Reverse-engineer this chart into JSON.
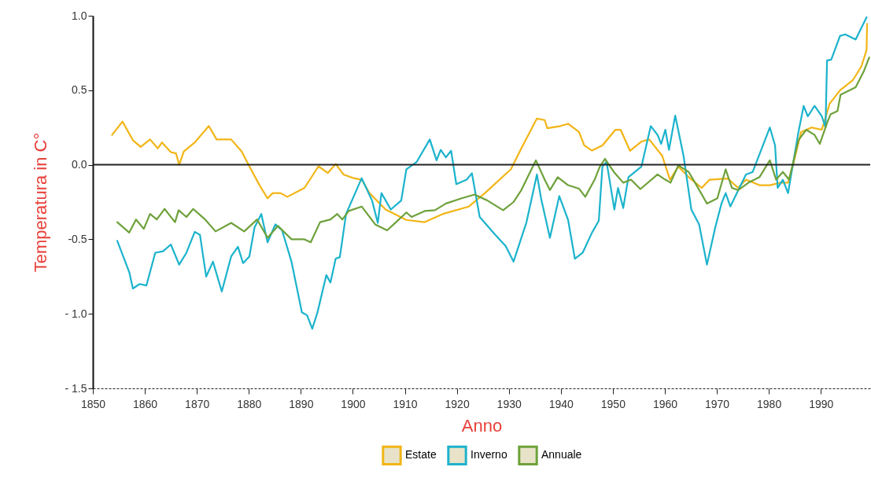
{
  "chart_data": {
    "type": "line",
    "xlabel": "Anno",
    "ylabel": "Temperatura in C°",
    "xlim": [
      1850,
      1999.5
    ],
    "ylim": [
      -1.5,
      1.0
    ],
    "xticks": [
      1850,
      1860,
      1870,
      1880,
      1890,
      1900,
      1910,
      1920,
      1930,
      1940,
      1950,
      1960,
      1970,
      1980,
      1990
    ],
    "yticks": [
      {
        "value": -1.5,
        "label": "- 1.5"
      },
      {
        "value": -1.0,
        "label": "- 1.0"
      },
      {
        "value": -0.5,
        "label": "-0.5"
      },
      {
        "value": 0,
        "label": "0.0"
      },
      {
        "value": 0.5,
        "label": "0.5"
      },
      {
        "value": 1.0,
        "label": "1.0"
      }
    ],
    "grid": false,
    "legend": "bottom",
    "line_style": "solid",
    "ref_lines": [
      {
        "axis": "y",
        "value": 0,
        "color": "#222222"
      }
    ],
    "series": [
      {
        "name": "Estate",
        "color": "#f2b516",
        "x": [
          1853.7,
          1855.7,
          1857.7,
          1859.2,
          1861,
          1862.5,
          1863.3,
          1865,
          1866,
          1866.6,
          1867.5,
          1869.6,
          1872.3,
          1873.8,
          1876.6,
          1878.6,
          1880.1,
          1882.1,
          1883.6,
          1884.6,
          1886.1,
          1887.4,
          1890.7,
          1893.4,
          1895.2,
          1896.7,
          1898.2,
          1900.2,
          1901.7,
          1903.2,
          1906.3,
          1910.3,
          1913.8,
          1917.3,
          1922.3,
          1925.4,
          1930.4,
          1932.4,
          1935.4,
          1936.9,
          1937.4,
          1939.9,
          1941.4,
          1943.5,
          1944.5,
          1946,
          1948,
          1950.5,
          1951.5,
          1953.3,
          1955.5,
          1957,
          1959.5,
          1961,
          1962.6,
          1964.6,
          1967.1,
          1968.6,
          1972.1,
          1974.1,
          1975.6,
          1978.2,
          1980.2,
          1982.2,
          1983.7,
          1984.7,
          1986.2,
          1988.2,
          1990.2,
          1991.7,
          1993.7,
          1996.2,
          1997.8,
          1998.8,
          1998.9
        ],
        "values": [
          0.2,
          0.29,
          0.165,
          0.12,
          0.17,
          0.11,
          0.15,
          0.085,
          0.076,
          0.0,
          0.09,
          0.15,
          0.26,
          0.17,
          0.17,
          0.09,
          -0.01,
          -0.14,
          -0.225,
          -0.19,
          -0.19,
          -0.215,
          -0.155,
          -0.01,
          -0.055,
          0.005,
          -0.065,
          -0.09,
          -0.1,
          -0.19,
          -0.3,
          -0.37,
          -0.385,
          -0.33,
          -0.28,
          -0.19,
          -0.03,
          0.11,
          0.31,
          0.3,
          0.245,
          0.26,
          0.275,
          0.22,
          0.13,
          0.095,
          0.13,
          0.235,
          0.235,
          0.094,
          0.156,
          0.17,
          0.06,
          -0.1,
          -0.012,
          -0.083,
          -0.155,
          -0.1,
          -0.092,
          -0.155,
          -0.1,
          -0.137,
          -0.137,
          -0.12,
          -0.12,
          0.005,
          0.22,
          0.25,
          0.235,
          0.41,
          0.5,
          0.57,
          0.66,
          0.77,
          0.945
        ]
      },
      {
        "name": "Inverno",
        "color": "#1bb3cc",
        "x": [
          1854.7,
          1857,
          1857.7,
          1859,
          1860.3,
          1862,
          1863.5,
          1865,
          1866.6,
          1868,
          1869.6,
          1870.6,
          1871.8,
          1873.1,
          1874.8,
          1876.6,
          1877.9,
          1878.9,
          1880.1,
          1881.1,
          1882.4,
          1883.6,
          1885.1,
          1886.4,
          1888.2,
          1890.2,
          1891.2,
          1892.2,
          1893.2,
          1894.9,
          1895.7,
          1896.7,
          1897.5,
          1898.7,
          1900.2,
          1901.7,
          1903.7,
          1904.8,
          1905.5,
          1907.3,
          1909.3,
          1910.3,
          1912.3,
          1914.8,
          1916.1,
          1916.9,
          1917.9,
          1918.9,
          1919.9,
          1921.9,
          1922.9,
          1924.4,
          1927.4,
          1929.4,
          1930.9,
          1933.4,
          1935.4,
          1936.2,
          1937.9,
          1939.7,
          1941.4,
          1942.7,
          1944.2,
          1946,
          1947.3,
          1948,
          1948.8,
          1950.3,
          1951,
          1952,
          1953,
          1955.5,
          1957.3,
          1958.6,
          1959.3,
          1960.1,
          1960.8,
          1962,
          1963.6,
          1965.1,
          1966.6,
          1968.1,
          1969.7,
          1970.9,
          1971.7,
          1972.6,
          1975.6,
          1976.9,
          1980.2,
          1981.2,
          1981.7,
          1982.7,
          1983.7,
          1985.7,
          1986.7,
          1987.5,
          1988.8,
          1990.2,
          1990.9,
          1991.2,
          1992,
          1993.7,
          1994.7,
          1996.7,
          1998.8
        ],
        "values": [
          -0.51,
          -0.72,
          -0.83,
          -0.8,
          -0.81,
          -0.59,
          -0.58,
          -0.535,
          -0.67,
          -0.59,
          -0.45,
          -0.47,
          -0.75,
          -0.65,
          -0.85,
          -0.615,
          -0.55,
          -0.66,
          -0.615,
          -0.42,
          -0.33,
          -0.52,
          -0.4,
          -0.44,
          -0.65,
          -0.99,
          -1.01,
          -1.1,
          -0.99,
          -0.74,
          -0.79,
          -0.63,
          -0.62,
          -0.33,
          -0.21,
          -0.09,
          -0.24,
          -0.39,
          -0.19,
          -0.3,
          -0.24,
          -0.03,
          0.02,
          0.17,
          0.03,
          0.1,
          0.05,
          0.094,
          -0.13,
          -0.1,
          -0.057,
          -0.35,
          -0.47,
          -0.545,
          -0.65,
          -0.385,
          -0.065,
          -0.225,
          -0.49,
          -0.21,
          -0.37,
          -0.63,
          -0.59,
          -0.455,
          -0.375,
          -0.012,
          0.02,
          -0.3,
          -0.155,
          -0.29,
          -0.083,
          -0.012,
          0.26,
          0.2,
          0.14,
          0.235,
          0.1,
          0.33,
          0.06,
          -0.3,
          -0.4,
          -0.67,
          -0.42,
          -0.26,
          -0.19,
          -0.28,
          -0.065,
          -0.048,
          0.25,
          0.13,
          -0.155,
          -0.1,
          -0.19,
          0.22,
          0.395,
          0.325,
          0.395,
          0.325,
          0.25,
          0.7,
          0.705,
          0.865,
          0.875,
          0.84,
          0.99
        ]
      },
      {
        "name": "Annuale",
        "color": "#6ea13b",
        "x": [
          1854.7,
          1857,
          1858.3,
          1859.8,
          1861,
          1862.3,
          1863.8,
          1865.8,
          1866.5,
          1868,
          1869.3,
          1871.6,
          1873.6,
          1876.6,
          1879.1,
          1881.6,
          1883.6,
          1885.6,
          1888.2,
          1890.7,
          1891.9,
          1893.7,
          1895.7,
          1897,
          1898,
          1899.2,
          1901.7,
          1904.3,
          1906.6,
          1908.3,
          1910.3,
          1911.3,
          1913.8,
          1915.8,
          1917.9,
          1920.9,
          1923.4,
          1925.9,
          1928.9,
          1930.9,
          1932.4,
          1935.2,
          1936.9,
          1937.9,
          1939.4,
          1941.4,
          1943.5,
          1944.7,
          1946.5,
          1947.5,
          1948.5,
          1950.2,
          1952,
          1953.5,
          1955.3,
          1958.6,
          1960.1,
          1961.1,
          1962.6,
          1964.6,
          1966.1,
          1968.1,
          1970.1,
          1971.7,
          1972.9,
          1974.1,
          1976.1,
          1978.2,
          1980.2,
          1981.4,
          1982.7,
          1983.9,
          1985.7,
          1987.2,
          1988.8,
          1989.8,
          1991.3,
          1991.9,
          1993.2,
          1993.8,
          1996.7,
          1998.3,
          1999.3
        ],
        "values": [
          -0.385,
          -0.455,
          -0.367,
          -0.43,
          -0.33,
          -0.367,
          -0.296,
          -0.385,
          -0.305,
          -0.35,
          -0.296,
          -0.367,
          -0.447,
          -0.39,
          -0.447,
          -0.367,
          -0.49,
          -0.41,
          -0.5,
          -0.5,
          -0.52,
          -0.385,
          -0.367,
          -0.33,
          -0.367,
          -0.31,
          -0.28,
          -0.4,
          -0.44,
          -0.385,
          -0.32,
          -0.35,
          -0.31,
          -0.305,
          -0.26,
          -0.225,
          -0.2,
          -0.24,
          -0.305,
          -0.25,
          -0.17,
          0.03,
          -0.1,
          -0.17,
          -0.083,
          -0.137,
          -0.16,
          -0.215,
          -0.1,
          -0.012,
          0.04,
          -0.048,
          -0.12,
          -0.1,
          -0.163,
          -0.065,
          -0.1,
          -0.12,
          -0.004,
          -0.048,
          -0.137,
          -0.26,
          -0.225,
          -0.03,
          -0.155,
          -0.17,
          -0.12,
          -0.083,
          0.03,
          -0.1,
          -0.048,
          -0.1,
          0.165,
          0.235,
          0.2,
          0.14,
          0.29,
          0.34,
          0.36,
          0.47,
          0.52,
          0.63,
          0.72
        ]
      }
    ]
  }
}
